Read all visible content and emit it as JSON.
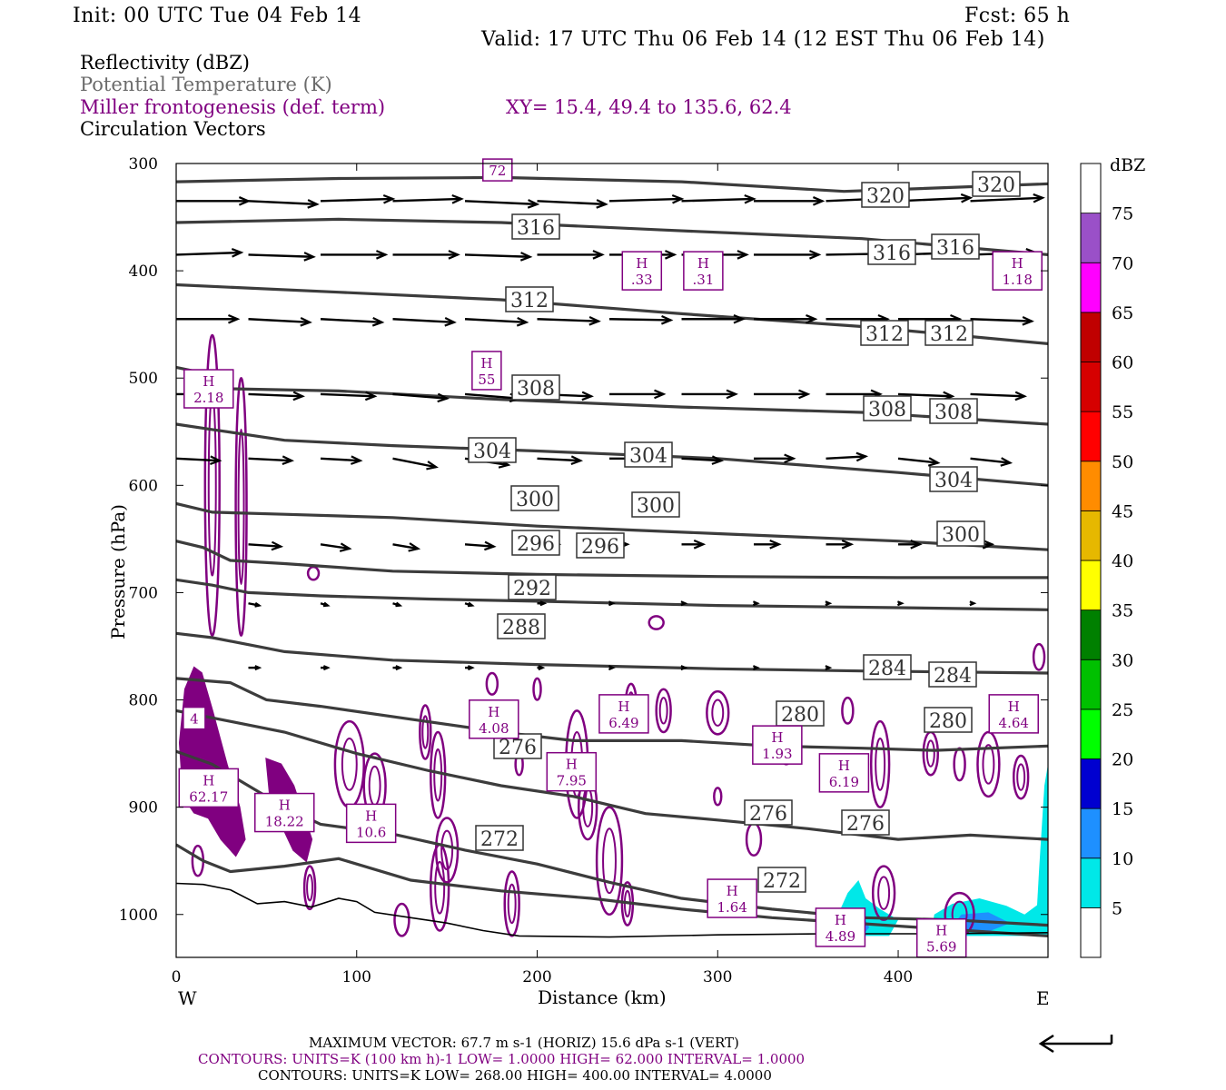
{
  "header": {
    "init": "Init: 00 UTC Tue 04 Feb 14",
    "fcst": "Fcst:   65 h",
    "valid": "Valid: 17 UTC Thu 06 Feb 14 (12 EST Thu 06 Feb 14)"
  },
  "fields": {
    "reflectivity": "Reflectivity (dBZ)",
    "theta": "Potential Temperature (K)",
    "frontogenesis": "Miller frontogenesis (def. term)",
    "xy": "XY=  15.4, 49.4 to 135.6, 62.4",
    "vectors": "Circulation Vectors"
  },
  "colors": {
    "theta_line": "#3c3c3c",
    "frontogenesis": "#800080",
    "vector": "#000000"
  },
  "chart_data": {
    "type": "cross-section",
    "xlabel": "Distance (km)",
    "ylabel": "Pressure (hPa)",
    "xlim": [
      0,
      483
    ],
    "ylim": [
      1040,
      300
    ],
    "x_ticks": [
      "0",
      "100",
      "200",
      "300",
      "400"
    ],
    "y_ticks": [
      "300",
      "400",
      "500",
      "600",
      "700",
      "800",
      "900",
      "1000"
    ],
    "west_label": "W",
    "east_label": "E",
    "colorbar": {
      "unit": "dBZ",
      "levels": [
        "5",
        "10",
        "15",
        "20",
        "25",
        "30",
        "35",
        "40",
        "45",
        "50",
        "55",
        "60",
        "65",
        "70",
        "75"
      ],
      "colors": [
        "#00e8e8",
        "#1e90ff",
        "#0000d0",
        "#00ff00",
        "#00c000",
        "#008000",
        "#ffff00",
        "#e6b800",
        "#ff8c00",
        "#ff0000",
        "#d60000",
        "#c00000",
        "#ff00ff",
        "#9a50c8",
        "#ffffff"
      ]
    },
    "theta_labels": [
      "320",
      "320",
      "316",
      "316",
      "316",
      "312",
      "312",
      "312",
      "308",
      "308",
      "308",
      "304",
      "304",
      "304",
      "300",
      "300",
      "300",
      "296",
      "296",
      "292",
      "288",
      "284",
      "284",
      "280",
      "280",
      "276",
      "276",
      "276",
      "272",
      "272"
    ],
    "theta_lines": [
      {
        "k": 320,
        "pts": [
          [
            0,
            317
          ],
          [
            90,
            314
          ],
          [
            180,
            313
          ],
          [
            280,
            317
          ],
          [
            370,
            326
          ],
          [
            483,
            319
          ]
        ]
      },
      {
        "k": 316,
        "pts": [
          [
            0,
            355
          ],
          [
            90,
            352
          ],
          [
            180,
            355
          ],
          [
            270,
            362
          ],
          [
            380,
            370
          ],
          [
            483,
            385
          ]
        ]
      },
      {
        "k": 312,
        "pts": [
          [
            0,
            413
          ],
          [
            90,
            420
          ],
          [
            180,
            427
          ],
          [
            280,
            440
          ],
          [
            380,
            452
          ],
          [
            483,
            468
          ]
        ]
      },
      {
        "k": 308,
        "pts": [
          [
            0,
            490
          ],
          [
            20,
            497
          ],
          [
            30,
            510
          ],
          [
            90,
            512
          ],
          [
            180,
            520
          ],
          [
            280,
            527
          ],
          [
            380,
            532
          ],
          [
            483,
            543
          ]
        ]
      },
      {
        "k": 304,
        "pts": [
          [
            0,
            543
          ],
          [
            20,
            548
          ],
          [
            60,
            558
          ],
          [
            120,
            563
          ],
          [
            200,
            568
          ],
          [
            300,
            575
          ],
          [
            400,
            588
          ],
          [
            483,
            600
          ]
        ]
      },
      {
        "k": 300,
        "pts": [
          [
            0,
            617
          ],
          [
            20,
            625
          ],
          [
            60,
            627
          ],
          [
            120,
            630
          ],
          [
            200,
            638
          ],
          [
            300,
            645
          ],
          [
            400,
            652
          ],
          [
            483,
            660
          ]
        ]
      },
      {
        "k": 296,
        "pts": [
          [
            0,
            652
          ],
          [
            15,
            658
          ],
          [
            30,
            670
          ],
          [
            60,
            673
          ],
          [
            120,
            680
          ],
          [
            200,
            683
          ],
          [
            300,
            685
          ],
          [
            400,
            686
          ],
          [
            483,
            686
          ]
        ]
      },
      {
        "k": 292,
        "pts": [
          [
            0,
            688
          ],
          [
            20,
            693
          ],
          [
            40,
            700
          ],
          [
            80,
            703
          ],
          [
            140,
            706
          ],
          [
            200,
            708
          ],
          [
            300,
            712
          ],
          [
            400,
            714
          ],
          [
            483,
            716
          ]
        ]
      },
      {
        "k": 288,
        "pts": [
          [
            0,
            738
          ],
          [
            20,
            742
          ],
          [
            60,
            755
          ],
          [
            120,
            763
          ],
          [
            200,
            767
          ],
          [
            300,
            771
          ],
          [
            380,
            773
          ],
          [
            483,
            775
          ]
        ]
      },
      {
        "k": 284,
        "pts": [
          [
            0,
            780
          ],
          [
            30,
            784
          ],
          [
            50,
            800
          ],
          [
            80,
            806
          ],
          [
            130,
            818
          ],
          [
            180,
            830
          ],
          [
            220,
            838
          ],
          [
            280,
            838
          ],
          [
            330,
            843
          ],
          [
            380,
            845
          ],
          [
            420,
            847
          ],
          [
            483,
            843
          ]
        ]
      },
      {
        "k": 280,
        "pts": [
          [
            0,
            810
          ],
          [
            30,
            820
          ],
          [
            60,
            830
          ],
          [
            100,
            850
          ],
          [
            140,
            866
          ],
          [
            180,
            880
          ],
          [
            220,
            890
          ],
          [
            260,
            906
          ],
          [
            300,
            912
          ],
          [
            350,
            920
          ],
          [
            400,
            930
          ],
          [
            440,
            926
          ],
          [
            483,
            930
          ]
        ]
      },
      {
        "k": 276,
        "pts": [
          [
            0,
            848
          ],
          [
            20,
            860
          ],
          [
            40,
            880
          ],
          [
            60,
            900
          ],
          [
            80,
            916
          ],
          [
            120,
            925
          ],
          [
            160,
            940
          ],
          [
            200,
            953
          ],
          [
            240,
            970
          ],
          [
            280,
            985
          ],
          [
            330,
            995
          ],
          [
            380,
            1003
          ],
          [
            430,
            1005
          ],
          [
            483,
            1010
          ]
        ]
      },
      {
        "k": 272,
        "pts": [
          [
            0,
            935
          ],
          [
            15,
            950
          ],
          [
            30,
            960
          ],
          [
            60,
            955
          ],
          [
            90,
            948
          ],
          [
            130,
            968
          ],
          [
            180,
            978
          ],
          [
            230,
            985
          ],
          [
            280,
            995
          ],
          [
            330,
            1003
          ],
          [
            483,
            1020
          ]
        ]
      }
    ],
    "ground": [
      [
        0,
        971
      ],
      [
        15,
        972
      ],
      [
        30,
        977
      ],
      [
        45,
        990
      ],
      [
        60,
        988
      ],
      [
        75,
        993
      ],
      [
        90,
        985
      ],
      [
        100,
        988
      ],
      [
        110,
        998
      ],
      [
        130,
        1003
      ],
      [
        150,
        1008
      ],
      [
        170,
        1015
      ],
      [
        190,
        1020
      ],
      [
        240,
        1021
      ],
      [
        300,
        1019
      ],
      [
        360,
        1018
      ],
      [
        420,
        1018
      ],
      [
        483,
        1017
      ]
    ],
    "vector_rows": [
      {
        "p": 335,
        "x": [
          0,
          40,
          80,
          120,
          160,
          200,
          240,
          280,
          320,
          360,
          400,
          440
        ],
        "dx": [
          40,
          38,
          40,
          38,
          40,
          38,
          40,
          40,
          38,
          40,
          40,
          40
        ],
        "dp": [
          0,
          3,
          -2,
          -2,
          3,
          3,
          -2,
          -2,
          0,
          -3,
          -3,
          -3
        ]
      },
      {
        "p": 385,
        "x": [
          0,
          40,
          80,
          120,
          160,
          200,
          240,
          280,
          320,
          360,
          400,
          440
        ],
        "dx": [
          36,
          36,
          36,
          36,
          36,
          36,
          36,
          36,
          36,
          36,
          36,
          36
        ],
        "dp": [
          -2,
          2,
          0,
          0,
          2,
          0,
          0,
          0,
          0,
          -1,
          -2,
          -2
        ]
      },
      {
        "p": 445,
        "x": [
          0,
          40,
          80,
          120,
          160,
          200,
          240,
          280,
          320,
          360,
          400,
          440
        ],
        "dx": [
          34,
          34,
          34,
          34,
          34,
          34,
          34,
          34,
          34,
          34,
          34,
          34
        ],
        "dp": [
          0,
          3,
          3,
          3,
          3,
          2,
          1,
          0,
          0,
          0,
          0,
          2
        ]
      },
      {
        "p": 515,
        "x": [
          0,
          40,
          80,
          120,
          160,
          200,
          240,
          280,
          320,
          360,
          400,
          440
        ],
        "dx": [
          30,
          30,
          30,
          30,
          30,
          30,
          30,
          30,
          30,
          30,
          30,
          30
        ],
        "dp": [
          0,
          2,
          2,
          4,
          4,
          2,
          0,
          0,
          0,
          0,
          2,
          2
        ]
      },
      {
        "p": 575,
        "x": [
          0,
          40,
          80,
          120,
          160,
          200,
          240,
          280,
          320,
          360,
          400,
          440
        ],
        "dx": [
          24,
          24,
          22,
          24,
          24,
          24,
          22,
          22,
          22,
          22,
          22,
          22
        ],
        "dp": [
          2,
          2,
          2,
          8,
          6,
          2,
          0,
          2,
          0,
          -2,
          4,
          4
        ]
      },
      {
        "p": 655,
        "x": [
          40,
          80,
          120,
          160,
          200,
          240,
          280,
          320,
          360,
          400,
          440
        ],
        "dx": [
          18,
          16,
          14,
          16,
          12,
          10,
          12,
          14,
          14,
          12,
          12
        ],
        "dp": [
          2,
          4,
          4,
          2,
          0,
          0,
          0,
          0,
          0,
          0,
          0
        ]
      },
      {
        "p": 710,
        "x": [
          40,
          80,
          120,
          160,
          200,
          240,
          280,
          320,
          360,
          400,
          440
        ],
        "dx": [
          6,
          4,
          4,
          4,
          4,
          2,
          2,
          2,
          2,
          2,
          2
        ],
        "dp": [
          2,
          2,
          2,
          2,
          0,
          0,
          0,
          0,
          0,
          0,
          0
        ]
      },
      {
        "p": 770,
        "x": [
          40,
          80,
          120,
          160,
          200,
          240,
          280,
          320,
          360,
          400,
          440
        ],
        "dx": [
          6,
          4,
          4,
          4,
          3,
          2,
          2,
          2,
          2,
          2,
          2
        ],
        "dp": [
          0,
          0,
          0,
          0,
          0,
          0,
          0,
          0,
          0,
          0,
          0
        ]
      }
    ],
    "front_highs": [
      {
        "val": "2.18",
        "x": 18,
        "p": 510
      },
      {
        "val": "55",
        "x": 172,
        "p": 493
      },
      {
        "val": ".33",
        "x": 258,
        "p": 400
      },
      {
        "val": ".31",
        "x": 292,
        "p": 400
      },
      {
        "val": "1.18",
        "x": 466,
        "p": 400
      },
      {
        "val": "4.08",
        "x": 176,
        "p": 818
      },
      {
        "val": "6.49",
        "x": 248,
        "p": 813
      },
      {
        "val": "7.95",
        "x": 219,
        "p": 867
      },
      {
        "val": "1.93",
        "x": 333,
        "p": 842
      },
      {
        "val": "6.19",
        "x": 370,
        "p": 868
      },
      {
        "val": "4.64",
        "x": 464,
        "p": 813
      },
      {
        "val": "62.17",
        "x": 18,
        "p": 882
      },
      {
        "val": "18.22",
        "x": 60,
        "p": 905
      },
      {
        "val": "10.6",
        "x": 108,
        "p": 915
      },
      {
        "val": "1.64",
        "x": 308,
        "p": 985
      },
      {
        "val": "4.89",
        "x": 368,
        "p": 1012
      },
      {
        "val": "5.69",
        "x": 424,
        "p": 1022
      },
      {
        "val": "72",
        "x": 178,
        "p": 306
      },
      {
        "val": "4",
        "x": 10,
        "p": 817
      }
    ]
  },
  "footer": {
    "max_vector": "MAXIMUM VECTOR:  67.7 m s-1 (HORIZ)          15.6 dPa s-1 (VERT)",
    "contours_front": "CONTOURS:  UNITS=K (100 km h)-1  LOW=   1.0000       HIGH=  62.000       INTERVAL=     1.0000",
    "contours_theta": "CONTOURS:  UNITS=K  LOW=   268.00        HIGH=   400.00        INTERVAL=     4.0000"
  }
}
